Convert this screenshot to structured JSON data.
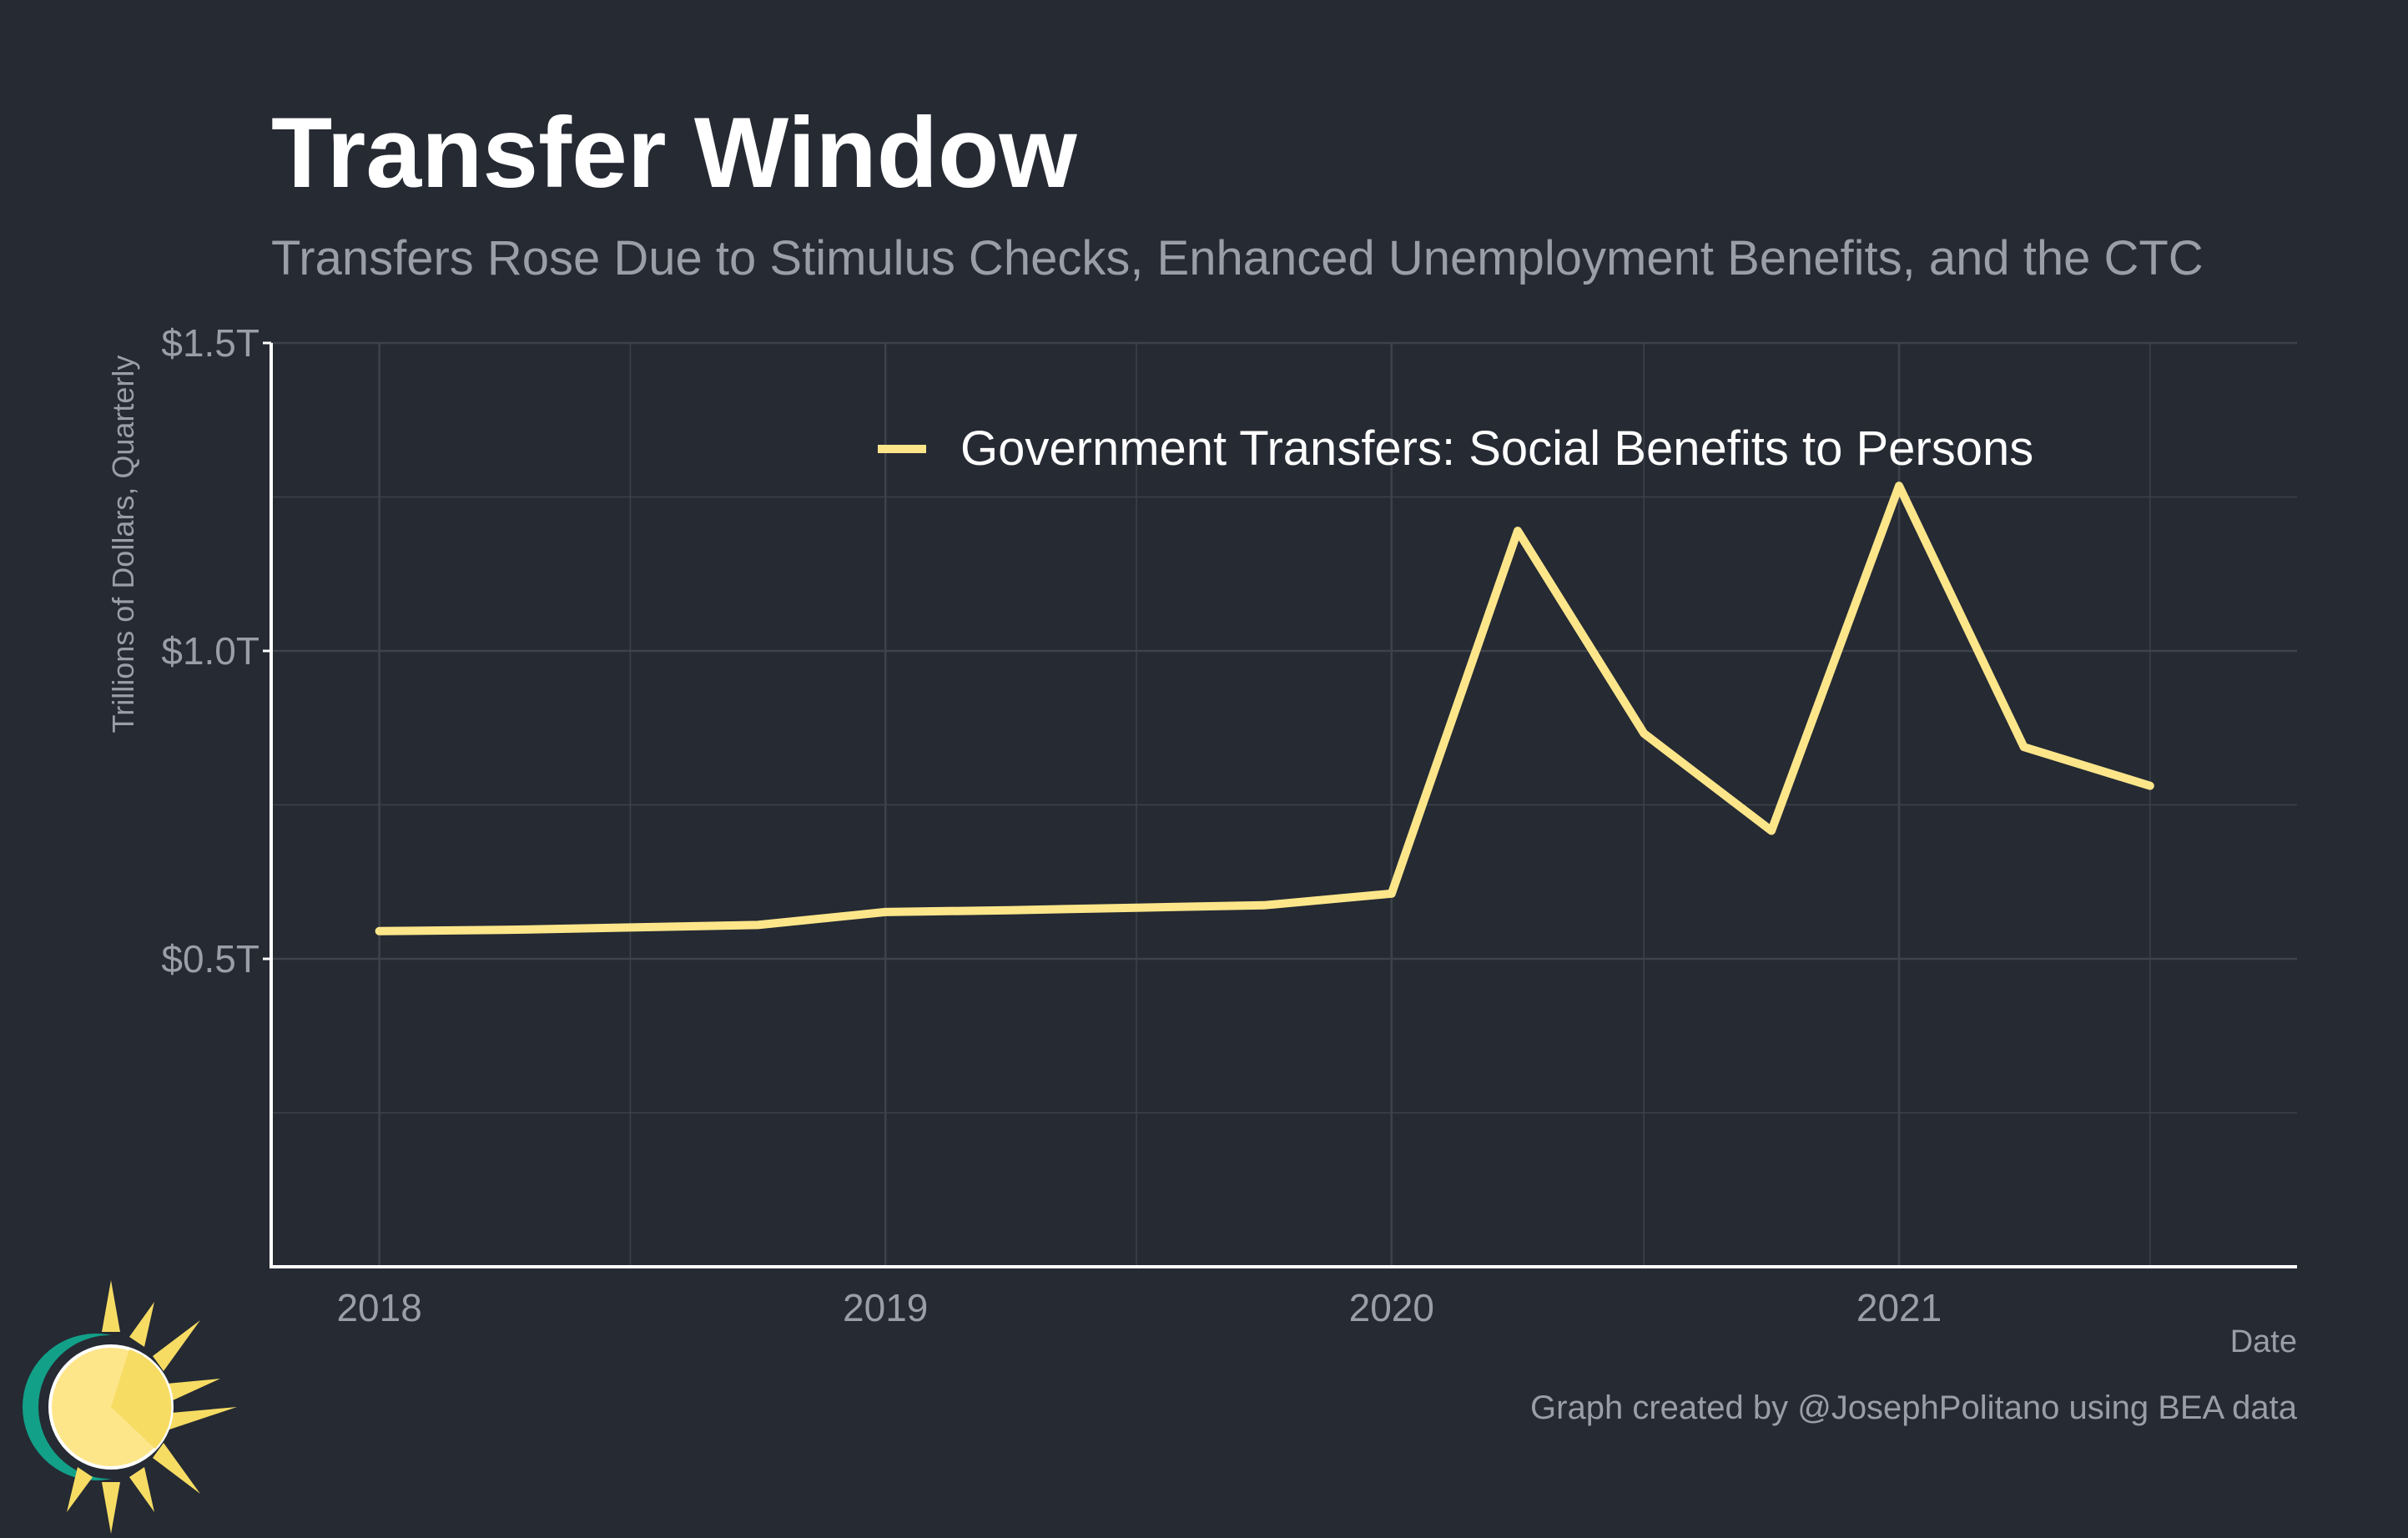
{
  "chart_data": {
    "type": "line",
    "title": "Transfer Window",
    "subtitle": "Transfers Rose Due to Stimulus Checks, Enhanced Unemployment Benefits, and the CTC",
    "xlabel": "Date",
    "ylabel": "Trillions of Dollars, Quarterly",
    "caption": "Graph created by @JosephPolitano using BEA data",
    "xlim": [
      "2017-10-15",
      "2021-10-15"
    ],
    "ylim": [
      0,
      1.5
    ],
    "y_ticks": [
      0.5,
      1.0,
      1.5
    ],
    "y_tick_labels": [
      "$0.5T",
      "$1.0T",
      "$1.5T"
    ],
    "y_minor_grid": [
      0.25,
      0.75,
      1.25
    ],
    "x_ticks": [
      "2018-01-01",
      "2019-01-01",
      "2020-01-01",
      "2021-01-01"
    ],
    "x_tick_labels": [
      "2018",
      "2019",
      "2020",
      "2021"
    ],
    "x_minor_grid": [
      "2018-07-01",
      "2019-07-01",
      "2020-07-01",
      "2021-07-01"
    ],
    "grid": true,
    "legend_position": "top-right",
    "series": [
      {
        "name": "Government Transfers: Social Benefits to Persons",
        "color": "#fde68a",
        "x": [
          "2018-01-01",
          "2018-04-01",
          "2018-07-01",
          "2018-10-01",
          "2019-01-01",
          "2019-04-01",
          "2019-07-01",
          "2019-10-01",
          "2020-01-01",
          "2020-04-01",
          "2020-07-01",
          "2020-10-01",
          "2021-01-01",
          "2021-04-01",
          "2021-07-01"
        ],
        "values": [
          0.545,
          0.547,
          0.551,
          0.555,
          0.576,
          0.579,
          0.583,
          0.587,
          0.606,
          1.195,
          0.866,
          0.708,
          1.268,
          0.844,
          0.781
        ]
      }
    ]
  },
  "colors": {
    "background": "#252a33",
    "grid": "#3d424b",
    "axis": "#ffffff",
    "muted_text": "#9a9ea6",
    "line": "#fde68a",
    "logo_teal": "#12a088",
    "logo_sun": "#fde68a",
    "logo_rays": "#f6dc63"
  },
  "logo": {
    "icon": "sun-icon"
  }
}
